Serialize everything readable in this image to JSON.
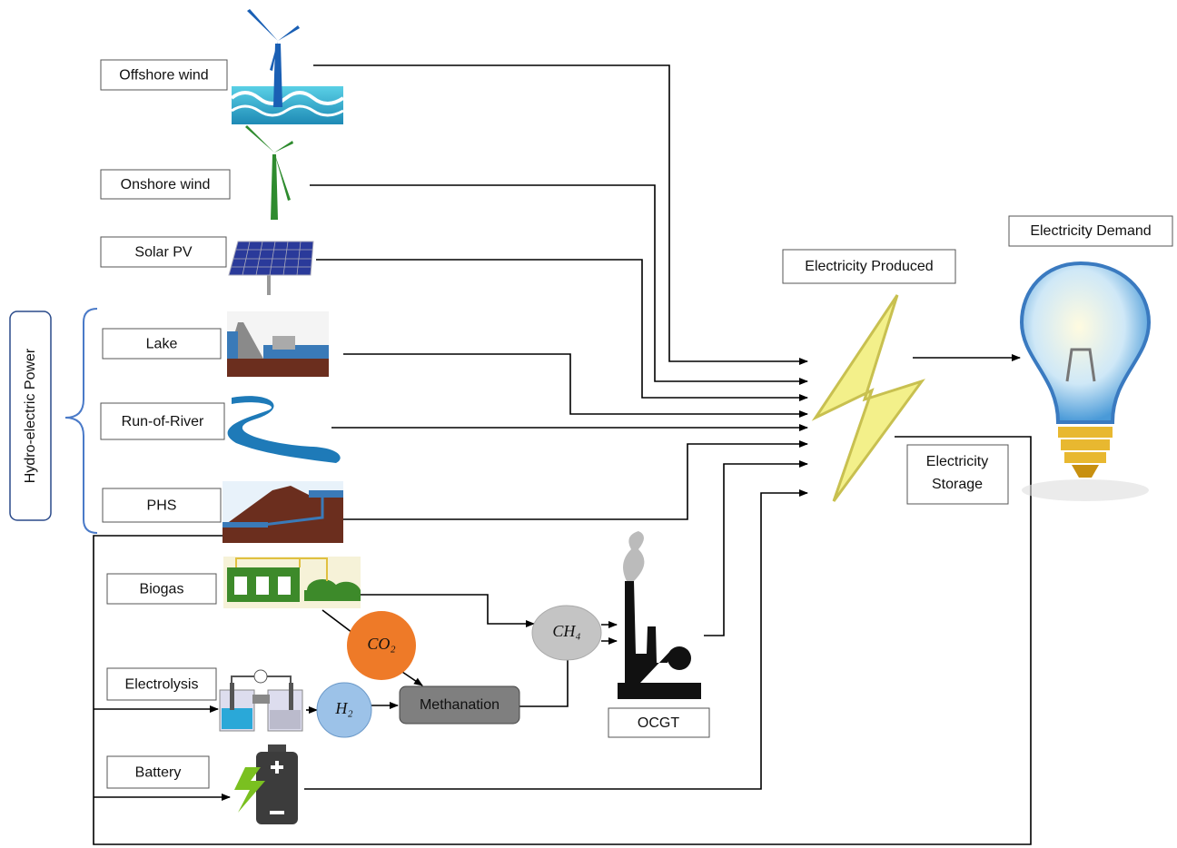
{
  "sources": [
    {
      "label": "Offshore wind"
    },
    {
      "label": "Onshore wind"
    },
    {
      "label": "Solar PV"
    },
    {
      "label": "Lake"
    },
    {
      "label": "Run-of-River"
    },
    {
      "label": "PHS"
    },
    {
      "label": "Biogas"
    },
    {
      "label": "Electrolysis"
    },
    {
      "label": "Battery"
    }
  ],
  "hydro_group": {
    "label": "Hydro-electric Power"
  },
  "produced": {
    "label": "Electricity Produced"
  },
  "demand": {
    "label": "Electricity Demand"
  },
  "storage": {
    "lines": [
      "Electricity",
      "Storage"
    ]
  },
  "conversion": {
    "co2": "CO₂",
    "h2": "H₂",
    "ch4": "CH₄",
    "methanation": "Methanation",
    "ocgt": "OCGT"
  }
}
